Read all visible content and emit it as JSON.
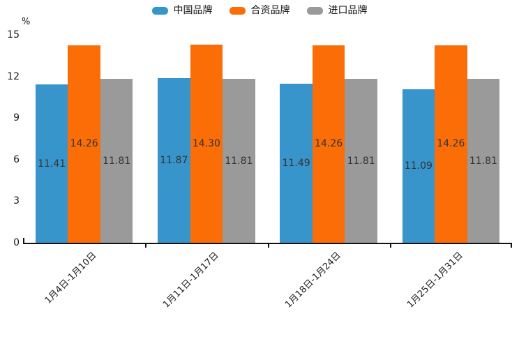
{
  "chart": {
    "unit_label": "%",
    "colors": {
      "china": "#3795CB",
      "joint_venture": "#FB6D07",
      "imported": "#9A9A9A",
      "axis": "#111111",
      "label_text": "#333333"
    }
  },
  "chart_data": {
    "type": "bar",
    "categories": [
      "1月4日-1月10日",
      "1月11日-1月17日",
      "1月18日-1月24日",
      "1月25日-1月31日"
    ],
    "series": [
      {
        "name": "中国品牌",
        "color": "#3795CB",
        "values": [
          11.41,
          11.87,
          11.49,
          11.09
        ]
      },
      {
        "name": "合资品牌",
        "color": "#FB6D07",
        "values": [
          14.26,
          14.3,
          14.26,
          14.26
        ]
      },
      {
        "name": "进口品牌",
        "color": "#9A9A9A",
        "values": [
          11.81,
          11.81,
          11.81,
          11.81
        ]
      }
    ],
    "title": "",
    "xlabel": "",
    "ylabel": "%",
    "ylim": [
      0,
      15
    ],
    "yticks": [
      0,
      3,
      6,
      9,
      12,
      15
    ],
    "grid": false,
    "legend_position": "top",
    "value_labels": "inside-middle",
    "value_label_decimals": 2,
    "xtick_rotation": 45
  }
}
